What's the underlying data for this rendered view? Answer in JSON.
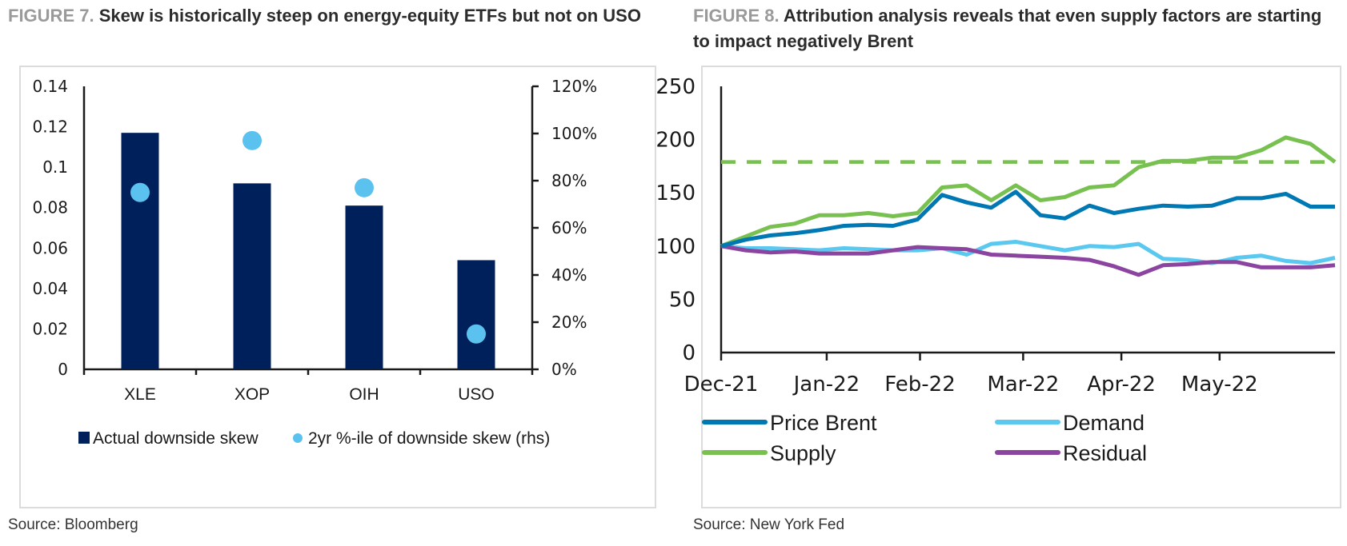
{
  "figure7": {
    "number_label": "FIGURE 7.",
    "title": "Skew is historically steep on energy-equity ETFs but not on USO",
    "source": "Source: Bloomberg"
  },
  "figure8": {
    "number_label": "FIGURE 8.",
    "title": "Attribution analysis reveals that even supply factors are starting to impact negatively Brent",
    "source": "Source: New York Fed"
  },
  "chart_data": [
    {
      "type": "bar",
      "title": "Skew is historically steep on energy-equity ETFs but not on USO",
      "categories": [
        "XLE",
        "XOP",
        "OIH",
        "USO"
      ],
      "series": [
        {
          "name": "Actual downside skew",
          "kind": "bar",
          "axis": "left",
          "color": "#00205b",
          "values": [
            0.117,
            0.092,
            0.081,
            0.054
          ]
        },
        {
          "name": "2yr %-ile of downside skew (rhs)",
          "kind": "scatter",
          "axis": "right",
          "color": "#5bc2f0",
          "values": [
            75,
            97,
            77,
            15
          ]
        }
      ],
      "ylim": [
        0,
        0.14
      ],
      "yticks": [
        "0",
        "0.02",
        "0.04",
        "0.06",
        "0.08",
        "0.1",
        "0.12",
        "0.14"
      ],
      "y2lim": [
        0,
        120
      ],
      "y2ticks": [
        "0%",
        "20%",
        "40%",
        "60%",
        "80%",
        "100%",
        "120%"
      ],
      "xlabel": "",
      "ylabel": "",
      "grid": false,
      "legend": "bottom"
    },
    {
      "type": "line",
      "title": "Attribution analysis reveals that even supply factors are starting to impact negatively Brent",
      "x_ticks": [
        "Dec-21",
        "Jan-22",
        "Feb-22",
        "Mar-22",
        "Apr-22",
        "May-22"
      ],
      "x_range_weeks": [
        0,
        26
      ],
      "x_tick_weeks": [
        0,
        4.3,
        8.1,
        12.3,
        16.3,
        20.3
      ],
      "ylim": [
        0,
        250
      ],
      "yticks": [
        "0",
        "50",
        "100",
        "150",
        "200",
        "250"
      ],
      "series": [
        {
          "name": "Price Brent",
          "color": "#0078b4",
          "values": [
            100,
            106,
            110,
            112,
            115,
            119,
            120,
            119,
            125,
            148,
            141,
            136,
            151,
            129,
            126,
            138,
            131,
            135,
            138,
            137,
            138,
            145,
            145,
            149,
            137,
            137
          ]
        },
        {
          "name": "Demand",
          "color": "#5bc8f0",
          "values": [
            100,
            98,
            98,
            97,
            96,
            98,
            97,
            96,
            96,
            98,
            92,
            102,
            104,
            100,
            96,
            100,
            99,
            102,
            88,
            87,
            84,
            89,
            91,
            86,
            84,
            89
          ]
        },
        {
          "name": "Supply",
          "color": "#78c151",
          "values": [
            100,
            109,
            118,
            121,
            129,
            129,
            131,
            128,
            131,
            155,
            157,
            143,
            157,
            143,
            146,
            155,
            157,
            174,
            180,
            180,
            183,
            183,
            190,
            202,
            196,
            179
          ]
        },
        {
          "name": "Residual",
          "color": "#8b44a0",
          "values": [
            100,
            96,
            94,
            95,
            93,
            93,
            93,
            96,
            99,
            98,
            97,
            92,
            91,
            90,
            89,
            87,
            81,
            73,
            82,
            83,
            85,
            85,
            80,
            80,
            80,
            82
          ]
        }
      ],
      "reference_line": {
        "name": "Supply threshold (dashed)",
        "value": 179,
        "color": "#78c151",
        "style": "dashed"
      },
      "xlabel": "",
      "ylabel": "",
      "grid": false,
      "legend": "bottom"
    }
  ]
}
